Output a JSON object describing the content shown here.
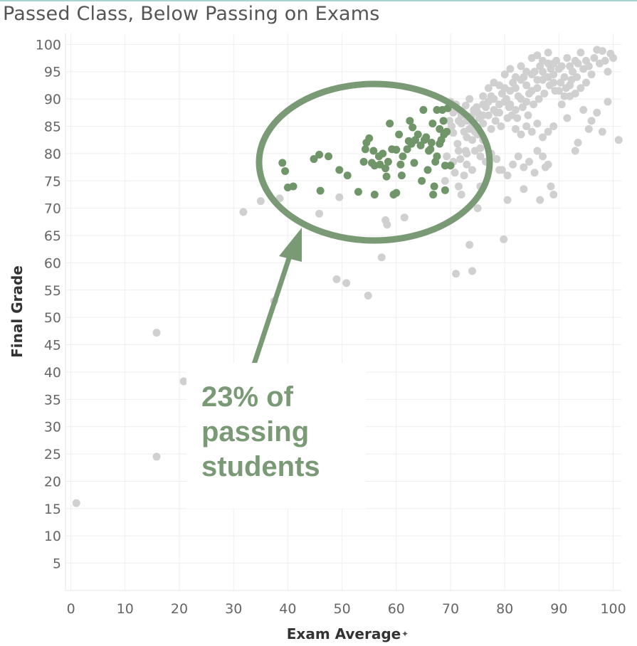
{
  "chart_data": {
    "type": "scatter",
    "title": "Passed Class, Below Passing on Exams",
    "xlabel": "Exam Average",
    "ylabel": "Final Grade",
    "xlim": [
      -1,
      101.5
    ],
    "ylim": [
      0,
      102
    ],
    "x_ticks": [
      0,
      10,
      20,
      30,
      40,
      50,
      60,
      70,
      80,
      90,
      100
    ],
    "y_ticks": [
      5,
      10,
      15,
      20,
      25,
      30,
      35,
      40,
      45,
      50,
      55,
      60,
      65,
      70,
      75,
      80,
      85,
      90,
      95,
      100
    ],
    "grid": true,
    "x_axis_icon": "pin-icon",
    "colors": {
      "highlight": "#6f9569",
      "other": "#d0d0d0",
      "callout": "#7a9a76"
    },
    "annotation": {
      "lines": [
        "23% of",
        "passing",
        "students"
      ],
      "shape": "ellipse-with-arrow"
    },
    "series": [
      {
        "values": [
          [
            39.0,
            78.3
          ],
          [
            39.5,
            76.8
          ],
          [
            40.0,
            73.8
          ],
          [
            41.0,
            74.0
          ],
          [
            44.8,
            79.0
          ],
          [
            45.8,
            79.8
          ],
          [
            46.0,
            73.2
          ],
          [
            47.5,
            79.5
          ],
          [
            49.5,
            77.0
          ],
          [
            51.0,
            76.0
          ],
          [
            53.0,
            73.0
          ],
          [
            54.0,
            78.5
          ],
          [
            54.3,
            80.8
          ],
          [
            54.5,
            82.0
          ],
          [
            55.0,
            82.8
          ],
          [
            55.5,
            78.3
          ],
          [
            55.8,
            80.5
          ],
          [
            56.0,
            77.8
          ],
          [
            56.0,
            72.5
          ],
          [
            56.8,
            79.5
          ],
          [
            57.0,
            78.0
          ],
          [
            57.5,
            80.0
          ],
          [
            58.0,
            77.3
          ],
          [
            58.2,
            75.8
          ],
          [
            58.5,
            78.5
          ],
          [
            58.8,
            85.5
          ],
          [
            59.2,
            80.8
          ],
          [
            59.5,
            72.5
          ],
          [
            60.0,
            72.8
          ],
          [
            60.0,
            80.7
          ],
          [
            60.5,
            83.5
          ],
          [
            60.8,
            78.0
          ],
          [
            61.0,
            76.0
          ],
          [
            61.2,
            79.5
          ],
          [
            62.0,
            80.8
          ],
          [
            62.3,
            82.3
          ],
          [
            62.5,
            86.0
          ],
          [
            62.8,
            81.8
          ],
          [
            63.0,
            84.8
          ],
          [
            63.3,
            78.3
          ],
          [
            63.5,
            82.5
          ],
          [
            64.0,
            83.5
          ],
          [
            64.5,
            81.5
          ],
          [
            64.7,
            75.0
          ],
          [
            65.0,
            88.0
          ],
          [
            65.2,
            82.5
          ],
          [
            65.5,
            83.0
          ],
          [
            65.8,
            77.0
          ],
          [
            66.0,
            80.5
          ],
          [
            66.3,
            80.8
          ],
          [
            66.5,
            82.0
          ],
          [
            66.7,
            85.5
          ],
          [
            66.8,
            72.5
          ],
          [
            67.0,
            74.0
          ],
          [
            67.2,
            78.5
          ],
          [
            67.5,
            79.5
          ],
          [
            67.5,
            88.0
          ],
          [
            68.0,
            84.5
          ],
          [
            68.0,
            81.8
          ],
          [
            68.3,
            82.5
          ],
          [
            68.5,
            88.0
          ],
          [
            68.7,
            86.0
          ],
          [
            69.0,
            73.3
          ],
          [
            69.0,
            77.8
          ],
          [
            69.3,
            84.0
          ],
          [
            69.5,
            88.3
          ],
          [
            70.0,
            77.8
          ],
          [
            68.8,
            83.5
          ]
        ]
      },
      {
        "values": [
          [
            1.0,
            16.0
          ],
          [
            15.8,
            47.2
          ],
          [
            15.8,
            24.5
          ],
          [
            20.8,
            38.3
          ],
          [
            31.8,
            69.3
          ],
          [
            35.0,
            71.3
          ],
          [
            37.5,
            53.0
          ],
          [
            38.5,
            71.8
          ],
          [
            45.8,
            69.0
          ],
          [
            49.0,
            57.0
          ],
          [
            49.5,
            72.0
          ],
          [
            50.8,
            56.3
          ],
          [
            54.8,
            54.0
          ],
          [
            57.3,
            61.0
          ],
          [
            58.0,
            67.8
          ],
          [
            58.3,
            67.0
          ],
          [
            61.5,
            68.3
          ],
          [
            69.3,
            79.5
          ],
          [
            69.0,
            75.0
          ],
          [
            71.0,
            58.0
          ],
          [
            73.5,
            63.3
          ],
          [
            74.0,
            58.5
          ],
          [
            75.0,
            70.0
          ],
          [
            75.5,
            74.0
          ],
          [
            79.8,
            64.3
          ],
          [
            71.0,
            89.0
          ],
          [
            70.5,
            87.5
          ],
          [
            71.5,
            86.0
          ],
          [
            72.0,
            85.5
          ],
          [
            72.5,
            84.0
          ],
          [
            73.0,
            83.0
          ],
          [
            73.5,
            84.5
          ],
          [
            74.0,
            82.5
          ],
          [
            74.5,
            84.0
          ],
          [
            75.0,
            83.5
          ],
          [
            72.8,
            80.5
          ],
          [
            71.8,
            79.0
          ],
          [
            74.5,
            80.5
          ],
          [
            75.5,
            81.0
          ],
          [
            76.0,
            82.5
          ],
          [
            70.5,
            83.8
          ],
          [
            71.3,
            81.8
          ],
          [
            73.8,
            86.8
          ],
          [
            74.3,
            88.0
          ],
          [
            72.8,
            88.8
          ],
          [
            73.5,
            90.0
          ],
          [
            74.8,
            88.5
          ],
          [
            75.3,
            86.5
          ],
          [
            76.0,
            87.0
          ],
          [
            76.5,
            88.5
          ],
          [
            77.0,
            89.5
          ],
          [
            77.5,
            90.5
          ],
          [
            78.0,
            88.0
          ],
          [
            78.5,
            87.5
          ],
          [
            79.0,
            89.0
          ],
          [
            79.5,
            91.0
          ],
          [
            80.0,
            92.0
          ],
          [
            80.3,
            90.0
          ],
          [
            80.8,
            88.5
          ],
          [
            81.0,
            91.5
          ],
          [
            81.5,
            93.0
          ],
          [
            82.0,
            92.0
          ],
          [
            82.5,
            90.5
          ],
          [
            83.0,
            93.5
          ],
          [
            83.5,
            94.0
          ],
          [
            84.0,
            92.5
          ],
          [
            84.5,
            91.0
          ],
          [
            85.0,
            94.5
          ],
          [
            85.5,
            95.0
          ],
          [
            86.0,
            93.5
          ],
          [
            86.5,
            96.0
          ],
          [
            87.0,
            95.0
          ],
          [
            87.5,
            94.0
          ],
          [
            88.0,
            96.5
          ],
          [
            88.5,
            95.5
          ],
          [
            89.0,
            94.5
          ],
          [
            89.5,
            97.0
          ],
          [
            90.0,
            95.5
          ],
          [
            90.5,
            96.0
          ],
          [
            91.0,
            94.0
          ],
          [
            91.5,
            97.5
          ],
          [
            92.0,
            96.0
          ],
          [
            92.5,
            95.0
          ],
          [
            93.0,
            97.0
          ],
          [
            93.5,
            96.5
          ],
          [
            94.0,
            98.5
          ],
          [
            94.5,
            95.5
          ],
          [
            95.0,
            97.0
          ],
          [
            95.5,
            96.0
          ],
          [
            96.0,
            94.5
          ],
          [
            96.5,
            97.5
          ],
          [
            97.0,
            99.0
          ],
          [
            97.5,
            96.5
          ],
          [
            98.0,
            98.8
          ],
          [
            98.5,
            97.0
          ],
          [
            99.0,
            95.0
          ],
          [
            99.5,
            98.3
          ],
          [
            100.0,
            97.5
          ],
          [
            76.0,
            90.5
          ],
          [
            77.0,
            92.0
          ],
          [
            78.0,
            93.0
          ],
          [
            79.0,
            92.5
          ],
          [
            80.0,
            94.5
          ],
          [
            81.0,
            95.5
          ],
          [
            82.0,
            94.0
          ],
          [
            83.0,
            96.0
          ],
          [
            84.0,
            95.0
          ],
          [
            85.0,
            97.5
          ],
          [
            86.0,
            98.0
          ],
          [
            87.0,
            97.0
          ],
          [
            88.0,
            98.5
          ],
          [
            89.0,
            96.5
          ],
          [
            78.3,
            86.0
          ],
          [
            79.3,
            85.0
          ],
          [
            80.5,
            86.5
          ],
          [
            81.3,
            87.0
          ],
          [
            82.3,
            86.5
          ],
          [
            83.3,
            88.5
          ],
          [
            84.3,
            87.0
          ],
          [
            85.3,
            89.0
          ],
          [
            86.3,
            90.0
          ],
          [
            87.3,
            91.0
          ],
          [
            88.3,
            92.5
          ],
          [
            89.3,
            91.5
          ],
          [
            90.3,
            93.0
          ],
          [
            91.3,
            92.0
          ],
          [
            92.3,
            93.5
          ],
          [
            93.3,
            94.0
          ],
          [
            82.0,
            84.5
          ],
          [
            83.0,
            83.5
          ],
          [
            84.0,
            85.0
          ],
          [
            85.0,
            84.0
          ],
          [
            86.0,
            85.5
          ],
          [
            87.0,
            83.0
          ],
          [
            88.0,
            84.0
          ],
          [
            89.0,
            85.0
          ],
          [
            76.5,
            78.5
          ],
          [
            77.5,
            80.0
          ],
          [
            78.5,
            79.0
          ],
          [
            79.5,
            77.0
          ],
          [
            80.5,
            76.0
          ],
          [
            81.5,
            78.0
          ],
          [
            82.5,
            79.5
          ],
          [
            83.5,
            77.5
          ],
          [
            84.5,
            78.5
          ],
          [
            85.5,
            76.5
          ],
          [
            86.0,
            80.5
          ],
          [
            87.0,
            79.5
          ],
          [
            87.5,
            77.5
          ],
          [
            88.0,
            78.0
          ],
          [
            79.0,
            77.0
          ],
          [
            80.5,
            71.5
          ],
          [
            83.5,
            73.5
          ],
          [
            86.5,
            71.5
          ],
          [
            88.5,
            74.0
          ],
          [
            89.0,
            72.5
          ],
          [
            93.0,
            80.5
          ],
          [
            93.5,
            82.0
          ],
          [
            95.5,
            84.5
          ],
          [
            97.0,
            87.5
          ],
          [
            99.0,
            89.5
          ],
          [
            101.0,
            82.5
          ],
          [
            98.0,
            84.0
          ],
          [
            96.0,
            86.0
          ],
          [
            94.5,
            88.0
          ],
          [
            92.0,
            90.5
          ],
          [
            90.5,
            89.0
          ],
          [
            91.5,
            86.5
          ],
          [
            77.5,
            84.5
          ],
          [
            76.0,
            85.5
          ],
          [
            75.5,
            79.5
          ],
          [
            73.0,
            78.0
          ],
          [
            72.5,
            76.0
          ],
          [
            74.0,
            77.0
          ],
          [
            73.0,
            80.0
          ],
          [
            71.5,
            80.5
          ],
          [
            70.5,
            78.5
          ],
          [
            70.8,
            76.5
          ],
          [
            71.5,
            74.0
          ],
          [
            72.0,
            72.5
          ],
          [
            69.8,
            86.0
          ],
          [
            70.2,
            85.0
          ],
          [
            70.0,
            89.5
          ],
          [
            71.0,
            88.0
          ],
          [
            72.0,
            87.0
          ],
          [
            73.0,
            86.0
          ],
          [
            74.0,
            85.0
          ],
          [
            75.0,
            87.5
          ],
          [
            76.0,
            89.0
          ],
          [
            77.0,
            87.0
          ],
          [
            78.0,
            90.0
          ],
          [
            79.0,
            87.5
          ],
          [
            80.0,
            89.5
          ],
          [
            81.0,
            89.0
          ],
          [
            82.0,
            88.0
          ],
          [
            83.0,
            90.0
          ],
          [
            84.0,
            89.5
          ],
          [
            85.0,
            91.5
          ],
          [
            86.0,
            92.0
          ],
          [
            87.0,
            93.5
          ],
          [
            88.0,
            94.0
          ],
          [
            89.0,
            93.0
          ],
          [
            90.0,
            91.5
          ],
          [
            91.0,
            90.5
          ],
          [
            92.0,
            92.5
          ],
          [
            93.0,
            91.0
          ],
          [
            94.0,
            92.0
          ],
          [
            95.0,
            93.0
          ]
        ]
      }
    ]
  }
}
